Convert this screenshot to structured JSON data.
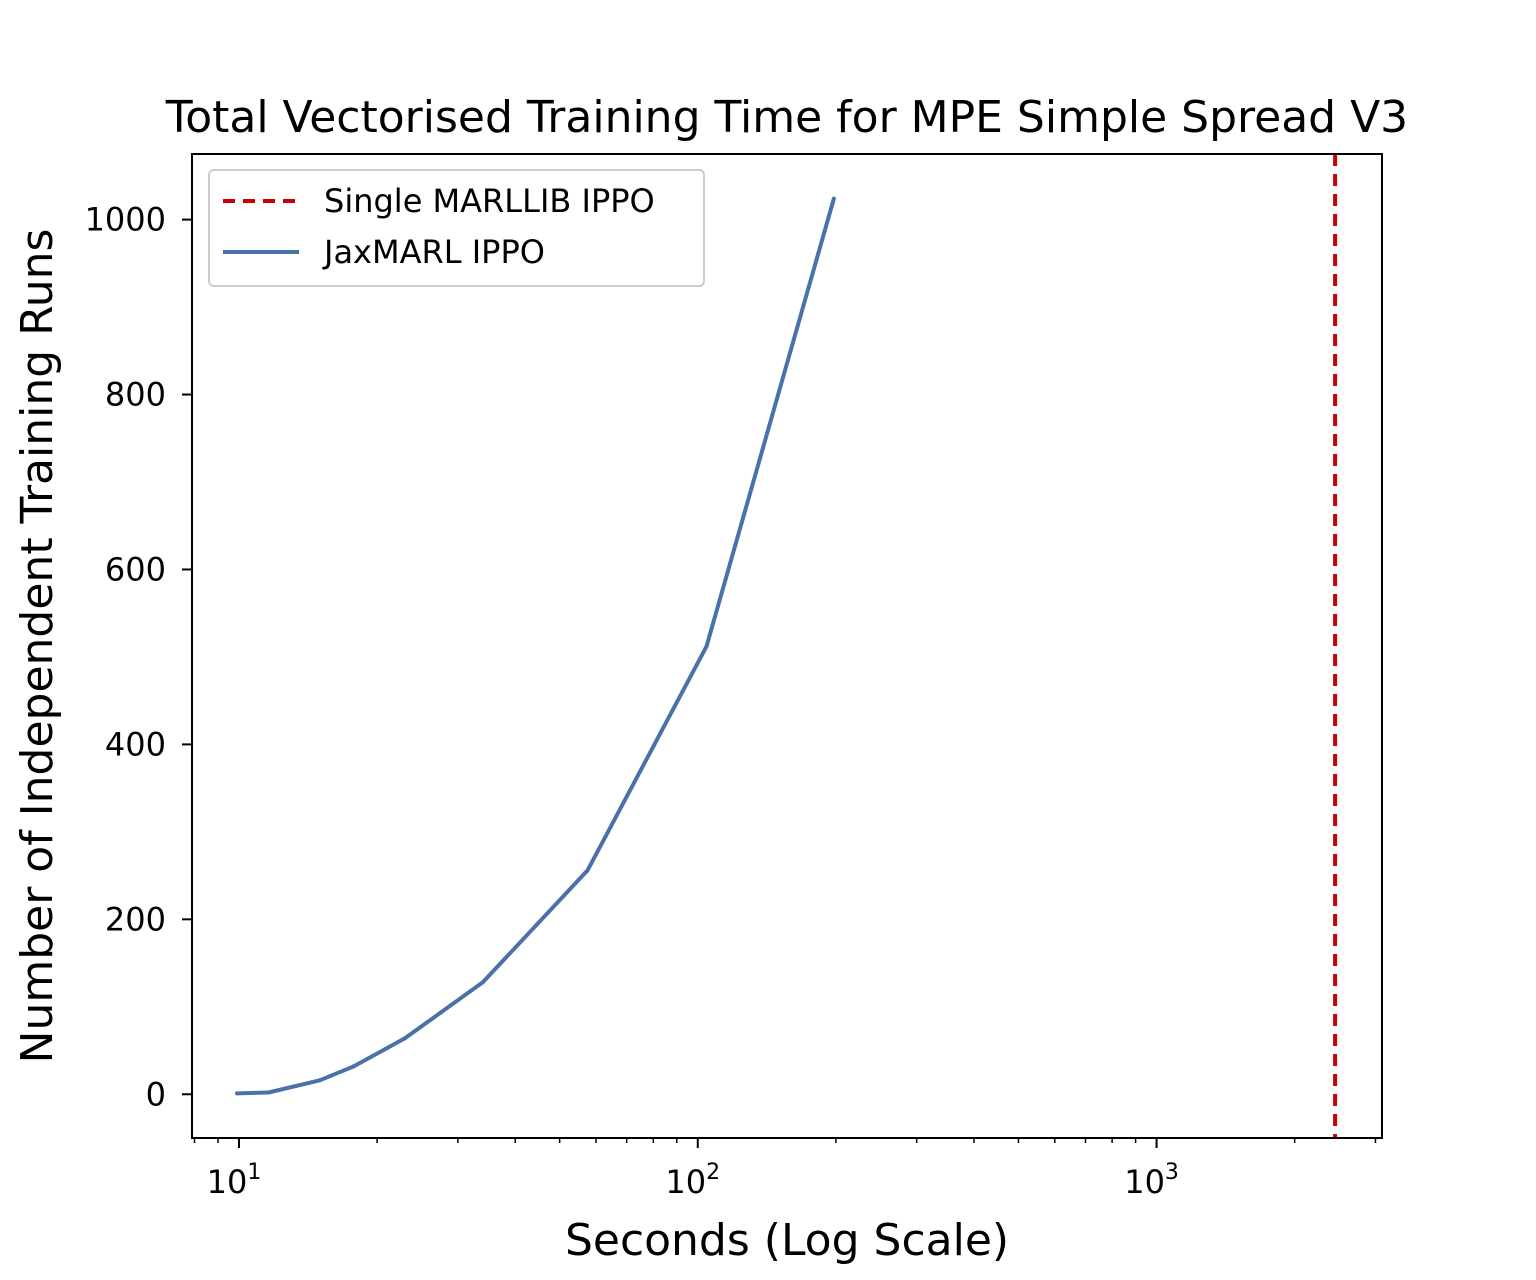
{
  "chart_data": {
    "type": "line",
    "title": "Total Vectorised Training Time for MPE Simple Spread V3",
    "xlabel": "Seconds (Log Scale)",
    "ylabel": "Number of Independent Training Runs",
    "xscale": "log",
    "xlim": [
      7.9,
      3100
    ],
    "ylim": [
      -50,
      1075
    ],
    "grid": false,
    "legend_position": "top-left",
    "x_ticks": [
      {
        "value": 10,
        "base": "10",
        "exp": "1"
      },
      {
        "value": 100,
        "base": "10",
        "exp": "2"
      },
      {
        "value": 1000,
        "base": "10",
        "exp": "3"
      }
    ],
    "y_ticks": [
      0,
      200,
      400,
      600,
      800,
      1000
    ],
    "series": [
      {
        "name": "Single MARLLIB IPPO",
        "kind": "vline",
        "x": 2450,
        "color": "#cc0000",
        "dashed": true
      },
      {
        "name": "JaxMARL IPPO",
        "kind": "line",
        "color": "#4a72a8",
        "x": [
          9.9,
          11.6,
          15.0,
          17.8,
          23.0,
          34.0,
          57.5,
          104.5,
          198
        ],
        "y": [
          1,
          2,
          16,
          32,
          64,
          128,
          256,
          512,
          1024
        ]
      }
    ]
  }
}
